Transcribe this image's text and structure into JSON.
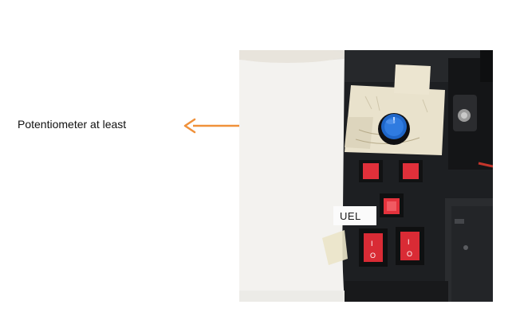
{
  "annotation": {
    "caption": "Potentiometer at least",
    "arrow_color": "#f0913a"
  },
  "photo": {
    "panel_label": "UEL",
    "switch_marks": [
      "I",
      "O"
    ]
  }
}
